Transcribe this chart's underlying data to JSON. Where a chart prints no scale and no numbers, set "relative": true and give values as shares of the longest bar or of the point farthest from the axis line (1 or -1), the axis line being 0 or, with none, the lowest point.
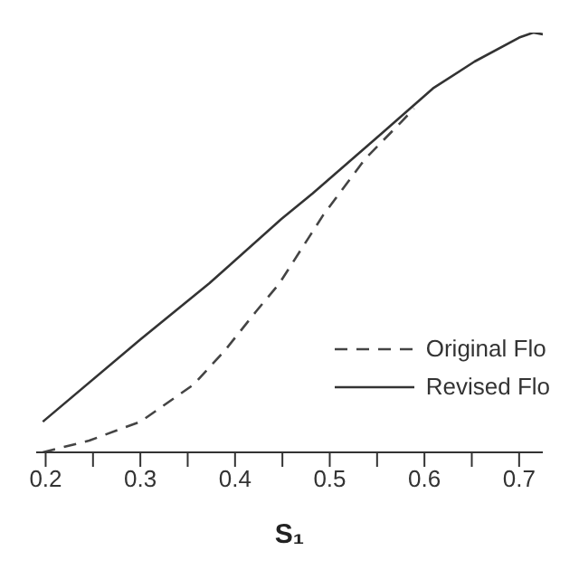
{
  "chart_data": {
    "type": "line",
    "relative": true,
    "xlabel": "S₁",
    "xlim": [
      0.19,
      0.725
    ],
    "xticks": [
      0.2,
      {
        "value": 0.25,
        "label": null
      },
      0.3,
      {
        "value": 0.35,
        "label": null
      },
      0.4,
      {
        "value": 0.45,
        "label": null
      },
      0.5,
      {
        "value": 0.55,
        "label": null
      },
      0.6,
      {
        "value": 0.65,
        "label": null
      },
      0.7
    ],
    "legend": "bottom right",
    "series": [
      {
        "name": "Original Flo",
        "color": "#444444",
        "line_style": "dashed",
        "x": [
          0.197,
          0.246,
          0.3,
          0.356,
          0.389,
          0.422,
          0.447,
          0.493,
          0.537,
          0.575,
          0.589
        ],
        "values": [
          0,
          0.028,
          0.073,
          0.161,
          0.242,
          0.335,
          0.403,
          0.565,
          0.698,
          0.786,
          0.819
        ]
      },
      {
        "name": "Revised Flo",
        "color": "#333333",
        "line_style": "solid",
        "x": [
          0.197,
          0.3,
          0.373,
          0.449,
          0.482,
          0.554,
          0.609,
          0.653,
          0.7,
          0.715,
          0.725
        ],
        "values": [
          0.073,
          0.269,
          0.403,
          0.556,
          0.617,
          0.758,
          0.867,
          0.931,
          0.988,
          1,
          0.996
        ]
      }
    ]
  }
}
